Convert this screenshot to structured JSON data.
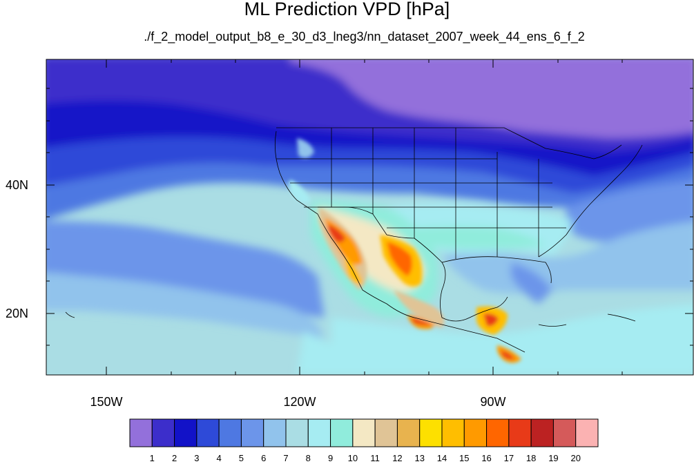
{
  "title": "ML Prediction VPD [hPa]",
  "subtitle": "./f_2_model_output_b8_e_30_d3_lneg3/nn_dataset_2007_week_44_ens_6_f_2",
  "map": {
    "variable": "VPD",
    "units": "hPa",
    "projection": "cylindrical equidistant",
    "lat_ticks": [
      "40N",
      "20N"
    ],
    "lon_ticks": [
      "150W",
      "120W",
      "90W"
    ],
    "region": "North America / North Pacific"
  },
  "colorbar": {
    "labels": [
      "1",
      "2",
      "3",
      "4",
      "5",
      "6",
      "7",
      "8",
      "9",
      "10",
      "11",
      "12",
      "13",
      "14",
      "15",
      "16",
      "17",
      "18",
      "19",
      "20"
    ],
    "colors": [
      "#9370db",
      "#3c2ecb",
      "#1212c8",
      "#2e4ad8",
      "#4e78e2",
      "#6c95ea",
      "#91c3ec",
      "#aadde4",
      "#a6ecf2",
      "#90ecdc",
      "#f4e8c4",
      "#e0c496",
      "#e8b34e",
      "#fde000",
      "#ffbe00",
      "#ff9a00",
      "#ff6600",
      "#e83a18",
      "#bc2222",
      "#d55a5a",
      "#fbb2b2"
    ]
  }
}
